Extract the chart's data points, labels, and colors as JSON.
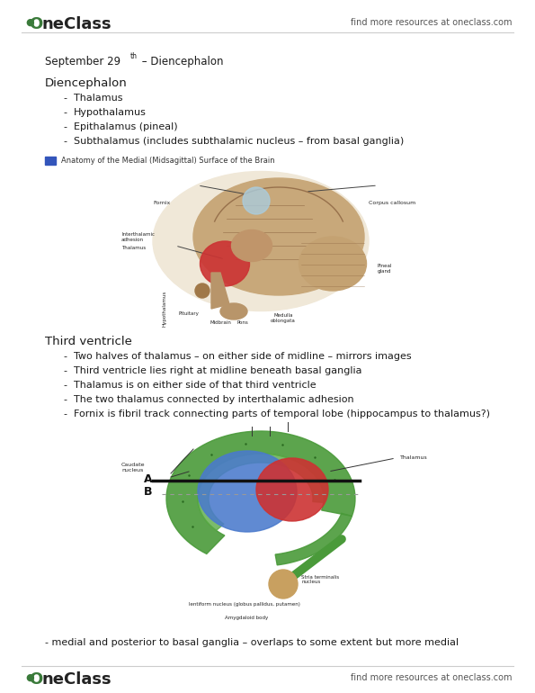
{
  "bg_color": "#ffffff",
  "header_text": "find more resources at oneclass.com",
  "footer_text": "find more resources at oneclass.com",
  "oneclass_color": "#3a7a3a",
  "date_heading": "September 29",
  "date_sup": "th",
  "date_rest": " – Diencephalon",
  "section1_title": "Diencephalon",
  "section1_bullets": [
    "Thalamus",
    "Hypothalamus",
    "Epithalamus (pineal)",
    "Subthalamus (includes subthalamic nucleus – from basal ganglia)"
  ],
  "image1_caption": "Anatomy of the Medial (Midsagittal) Surface of the Brain",
  "section2_title": "Third ventricle",
  "section2_bullets": [
    "Two halves of thalamus – on either side of midline – mirrors images",
    "Third ventricle lies right at midline beneath basal ganglia",
    "Thalamus is on either side of that third ventricle",
    "The two thalamus connected by interthalamic adhesion",
    "Fornix is fibril track connecting parts of temporal lobe (hippocampus to thalamus?)"
  ],
  "footer_note": "- medial and posterior to basal ganglia – overlaps to some extent but more medial",
  "text_color": "#1a1a1a",
  "font_size_body": 8.0,
  "font_size_heading": 9.5,
  "font_size_date": 8.5,
  "brain1_color_main": "#c8a87a",
  "brain1_color_dark": "#8B6340",
  "brain1_color_red": "#cc3333",
  "brain1_color_blue": "#aaccdd",
  "brain2_green_outer": "#4a9a3a",
  "brain2_green_inner": "#5aaa45",
  "brain2_blue": "#4a7acc",
  "brain2_red": "#cc3333",
  "brain2_tan": "#c8a060"
}
